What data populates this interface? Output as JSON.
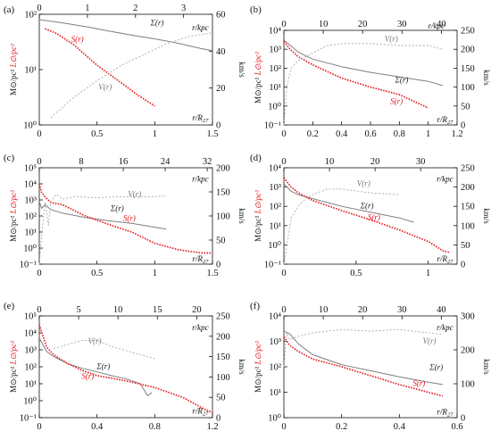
{
  "colors": {
    "sigma": "#7f7f7f",
    "S": "#e8141c",
    "V": "#a9a9a9",
    "axis": "#111111",
    "label_red": "#e8141c"
  },
  "axis_titles": {
    "left_black": "M",
    "left_black_sub": "⊙",
    "left_black_unit": "/pc²",
    "left_red": "L",
    "left_red_sub": "⊙",
    "left_red_unit": "/pc²",
    "right": "km/s",
    "top": "r/kpc",
    "bottom": "r/R",
    "bottom_sub": "27"
  },
  "chart_data": [
    {
      "panel": "(a)",
      "type": "line",
      "x_range": [
        0,
        1.5
      ],
      "x_ticks": [
        0,
        0.5,
        1,
        1.5
      ],
      "x_tick_labels": [
        "0",
        "0.5",
        "1",
        "1.5"
      ],
      "top_range": [
        0,
        3.6
      ],
      "top_ticks": [
        0,
        1,
        2,
        3
      ],
      "top_tick_labels": [
        "0",
        "1",
        "2",
        "3"
      ],
      "y_log_range": [
        0,
        2
      ],
      "y_ticks": [
        0,
        1,
        2
      ],
      "y_tick_labels": [
        "10⁰",
        "10¹",
        "10²"
      ],
      "v_range": [
        0,
        60
      ],
      "v_ticks": [
        0,
        20,
        40,
        60
      ],
      "v_tick_labels": [
        "0",
        "20",
        "40",
        "60"
      ],
      "labels": {
        "sigma": "Σ(r)",
        "S": "S(r)",
        "V": "V(r)"
      },
      "series": [
        {
          "name": "Σ(r)",
          "axis": "left",
          "x": [
            0,
            0.2,
            0.4,
            0.6,
            0.8,
            1.0,
            1.2,
            1.4,
            1.5
          ],
          "y": [
            80,
            70,
            60,
            50,
            42,
            36,
            30,
            24,
            22
          ]
        },
        {
          "name": "S(r)",
          "axis": "left",
          "x": [
            0.05,
            0.15,
            0.3,
            0.5,
            0.7,
            0.85,
            1.0
          ],
          "y": [
            55,
            45,
            28,
            12,
            6,
            3.5,
            2.2
          ]
        },
        {
          "name": "V(r)",
          "axis": "right",
          "x": [
            0.1,
            0.3,
            0.5,
            0.7,
            0.9,
            1.1,
            1.3,
            1.5
          ],
          "y": [
            4,
            15,
            24,
            32,
            38,
            44,
            48,
            50
          ]
        }
      ]
    },
    {
      "panel": "(b)",
      "type": "line",
      "x_range": [
        0,
        1.2
      ],
      "x_ticks": [
        0,
        0.2,
        0.4,
        0.6,
        0.8,
        1.0,
        1.2
      ],
      "x_tick_labels": [
        "0",
        "0.2",
        "0.4",
        "0.6",
        "0.8",
        "1",
        "1.2"
      ],
      "top_range": [
        0,
        44
      ],
      "top_ticks": [
        0,
        10,
        20,
        30,
        40
      ],
      "top_tick_labels": [
        "0",
        "10",
        "20",
        "30",
        "40"
      ],
      "y_log_range": [
        -1,
        4
      ],
      "y_ticks": [
        -1,
        0,
        1,
        2,
        3,
        4
      ],
      "y_tick_labels": [
        "10⁻¹",
        "10⁰",
        "10¹",
        "10²",
        "10³",
        "10⁴"
      ],
      "v_range": [
        0,
        250
      ],
      "v_ticks": [
        0,
        50,
        100,
        150,
        200,
        250
      ],
      "v_tick_labels": [
        "0",
        "50",
        "100",
        "150",
        "200",
        "250"
      ],
      "labels": {
        "sigma": "Σ(r)",
        "S": "S(r)",
        "V": "V(r)"
      },
      "series": [
        {
          "name": "Σ(r)",
          "axis": "left",
          "x": [
            0,
            0.05,
            0.1,
            0.2,
            0.4,
            0.6,
            0.8,
            1.0,
            1.1
          ],
          "y": [
            3000,
            1500,
            700,
            300,
            120,
            60,
            35,
            20,
            12
          ]
        },
        {
          "name": "S(r)",
          "axis": "left",
          "x": [
            0,
            0.05,
            0.1,
            0.2,
            0.4,
            0.6,
            0.8,
            1.0
          ],
          "y": [
            2500,
            900,
            400,
            150,
            30,
            10,
            4,
            0.8
          ]
        },
        {
          "name": "V(r)",
          "axis": "right",
          "x": [
            0,
            0.02,
            0.05,
            0.1,
            0.2,
            0.3,
            0.4,
            0.6,
            0.8,
            1.0,
            1.1
          ],
          "y": [
            0,
            100,
            150,
            170,
            190,
            210,
            215,
            215,
            210,
            210,
            200
          ]
        }
      ]
    },
    {
      "panel": "(c)",
      "type": "line",
      "x_range": [
        0,
        1.5
      ],
      "x_ticks": [
        0,
        0.5,
        1,
        1.5
      ],
      "x_tick_labels": [
        "0",
        "0.5",
        "1",
        "1.5"
      ],
      "top_range": [
        0,
        33
      ],
      "top_ticks": [
        0,
        8,
        16,
        24,
        32
      ],
      "top_tick_labels": [
        "0",
        "8",
        "16",
        "24",
        "32"
      ],
      "y_log_range": [
        -1,
        5
      ],
      "y_ticks": [
        -1,
        0,
        1,
        2,
        3,
        4,
        5
      ],
      "y_tick_labels": [
        "10⁻¹",
        "10⁰",
        "10¹",
        "10²",
        "10³",
        "10⁴",
        "10⁵"
      ],
      "v_range": [
        0,
        200
      ],
      "v_ticks": [
        0,
        50,
        100,
        150,
        200
      ],
      "v_tick_labels": [
        "0",
        "50",
        "100",
        "150",
        "200"
      ],
      "labels": {
        "sigma": "Σ(r)",
        "S": "S(r)",
        "V": "V(r)"
      },
      "series": [
        {
          "name": "Σ(r)",
          "axis": "left",
          "x": [
            0,
            0.02,
            0.05,
            0.1,
            0.2,
            0.4,
            0.6,
            0.8,
            1.0,
            1.1
          ],
          "y": [
            800,
            300,
            500,
            250,
            150,
            80,
            50,
            35,
            20,
            15
          ]
        },
        {
          "name": "S(r)",
          "axis": "left",
          "x": [
            0,
            0.02,
            0.05,
            0.1,
            0.2,
            0.4,
            0.6,
            0.8,
            1.0,
            1.2,
            1.4,
            1.5
          ],
          "y": [
            10000,
            3000,
            1500,
            700,
            500,
            100,
            30,
            10,
            2,
            0.8,
            0.5,
            0.5
          ]
        },
        {
          "name": "V(r)",
          "axis": "right",
          "x": [
            0,
            0.02,
            0.05,
            0.08,
            0.1,
            0.15,
            0.2,
            0.3,
            0.5,
            0.7,
            0.9,
            1.0,
            1.1
          ],
          "y": [
            0,
            60,
            130,
            80,
            130,
            145,
            135,
            140,
            138,
            140,
            140,
            140,
            142
          ]
        }
      ]
    },
    {
      "panel": "(d)",
      "type": "line",
      "x_range": [
        0,
        1.2
      ],
      "x_ticks": [
        0,
        0.5,
        1
      ],
      "x_tick_labels": [
        "0",
        "0.5",
        "1"
      ],
      "top_range": [
        0,
        38
      ],
      "top_ticks": [
        0,
        10,
        20,
        30
      ],
      "top_tick_labels": [
        "0",
        "10",
        "20",
        "30"
      ],
      "y_log_range": [
        -1,
        4
      ],
      "y_ticks": [
        -1,
        0,
        1,
        2,
        3,
        4
      ],
      "y_tick_labels": [
        "10⁻¹",
        "10⁰",
        "10¹",
        "10²",
        "10³",
        "10⁴"
      ],
      "v_range": [
        0,
        250
      ],
      "v_ticks": [
        0,
        50,
        100,
        150,
        200,
        250
      ],
      "v_tick_labels": [
        "0",
        "50",
        "100",
        "150",
        "200",
        "250"
      ],
      "labels": {
        "sigma": "Σ(r)",
        "S": "S(r)",
        "V": "V(r)"
      },
      "series": [
        {
          "name": "Σ(r)",
          "axis": "left",
          "x": [
            0,
            0.05,
            0.1,
            0.2,
            0.4,
            0.6,
            0.8,
            0.9
          ],
          "y": [
            1500,
            600,
            400,
            250,
            100,
            50,
            25,
            15
          ]
        },
        {
          "name": "S(r)",
          "axis": "left",
          "x": [
            0,
            0.05,
            0.1,
            0.2,
            0.4,
            0.6,
            0.8,
            1.0,
            1.1,
            1.15
          ],
          "y": [
            3000,
            1000,
            500,
            200,
            60,
            20,
            6,
            1.5,
            0.5,
            0.4
          ]
        },
        {
          "name": "V(r)",
          "axis": "right",
          "x": [
            0,
            0.05,
            0.1,
            0.15,
            0.2,
            0.3,
            0.4,
            0.5,
            0.6,
            0.8
          ],
          "y": [
            0,
            120,
            150,
            170,
            180,
            195,
            195,
            190,
            185,
            180
          ]
        }
      ]
    },
    {
      "panel": "(e)",
      "type": "line",
      "x_range": [
        0,
        1.2
      ],
      "x_ticks": [
        0,
        0.4,
        0.8,
        1.2
      ],
      "x_tick_labels": [
        "0",
        "0.4",
        "0.8",
        "1.2"
      ],
      "top_range": [
        0,
        22
      ],
      "top_ticks": [
        0,
        5,
        10,
        15,
        20
      ],
      "top_tick_labels": [
        "0",
        "5",
        "10",
        "15",
        "20"
      ],
      "y_log_range": [
        -1,
        5
      ],
      "y_ticks": [
        -1,
        0,
        1,
        2,
        3,
        4,
        5
      ],
      "y_tick_labels": [
        "10⁻¹",
        "10⁰",
        "10¹",
        "10²",
        "10³",
        "10⁴",
        "10⁵"
      ],
      "v_range": [
        0,
        250
      ],
      "v_ticks": [
        0,
        50,
        100,
        150,
        200,
        250
      ],
      "v_tick_labels": [
        "0",
        "50",
        "100",
        "150",
        "200",
        "250"
      ],
      "labels": {
        "sigma": "Σ(r)",
        "S": "S(r)",
        "V": "V(r)"
      },
      "series": [
        {
          "name": "Σ(r)",
          "axis": "left",
          "x": [
            0,
            0.05,
            0.1,
            0.2,
            0.3,
            0.4,
            0.5,
            0.6,
            0.7,
            0.75,
            0.78
          ],
          "y": [
            5000,
            800,
            400,
            150,
            80,
            50,
            30,
            20,
            10,
            2,
            3
          ]
        },
        {
          "name": "S(r)",
          "axis": "left",
          "x": [
            0,
            0.05,
            0.1,
            0.2,
            0.3,
            0.4,
            0.6,
            0.8,
            1.0,
            1.15,
            1.2
          ],
          "y": [
            30000,
            1500,
            500,
            150,
            60,
            30,
            15,
            6,
            1.5,
            0.3,
            0.2
          ]
        },
        {
          "name": "V(r)",
          "axis": "right",
          "x": [
            0.1,
            0.2,
            0.3,
            0.4,
            0.5,
            0.6,
            0.7,
            0.8
          ],
          "y": [
            170,
            180,
            190,
            190,
            175,
            165,
            155,
            145
          ]
        }
      ]
    },
    {
      "panel": "(f)",
      "type": "line",
      "x_range": [
        0,
        0.6
      ],
      "x_ticks": [
        0,
        0.2,
        0.4,
        0.6
      ],
      "x_tick_labels": [
        "0",
        "0.2",
        "0.4",
        "0.6"
      ],
      "top_range": [
        0,
        44
      ],
      "top_ticks": [
        0,
        10,
        20,
        30,
        40
      ],
      "top_tick_labels": [
        "0",
        "10",
        "20",
        "30",
        "40"
      ],
      "y_log_range": [
        0,
        4
      ],
      "y_ticks": [
        0,
        1,
        2,
        3,
        4
      ],
      "y_tick_labels": [
        "10⁰",
        "10¹",
        "10²",
        "10³",
        "10⁴"
      ],
      "v_range": [
        0,
        300
      ],
      "v_ticks": [
        0,
        100,
        200,
        300
      ],
      "v_tick_labels": [
        "0",
        "100",
        "200",
        "300"
      ],
      "labels": {
        "sigma": "Σ(r)",
        "S": "S(r)",
        "V": "V(r)"
      },
      "series": [
        {
          "name": "Σ(r)",
          "axis": "left",
          "x": [
            0,
            0.02,
            0.05,
            0.1,
            0.2,
            0.3,
            0.4,
            0.5,
            0.55
          ],
          "y": [
            2500,
            2000,
            800,
            300,
            120,
            70,
            40,
            25,
            20
          ]
        },
        {
          "name": "S(r)",
          "axis": "left",
          "x": [
            0,
            0.02,
            0.05,
            0.1,
            0.2,
            0.3,
            0.4,
            0.5,
            0.55
          ],
          "y": [
            1500,
            700,
            400,
            200,
            100,
            45,
            20,
            10,
            7
          ]
        },
        {
          "name": "V(r)",
          "axis": "right",
          "x": [
            0,
            0.01,
            0.02,
            0.05,
            0.1,
            0.2,
            0.3,
            0.4,
            0.5,
            0.55
          ],
          "y": [
            150,
            250,
            230,
            240,
            250,
            260,
            255,
            260,
            250,
            245
          ]
        }
      ]
    }
  ]
}
